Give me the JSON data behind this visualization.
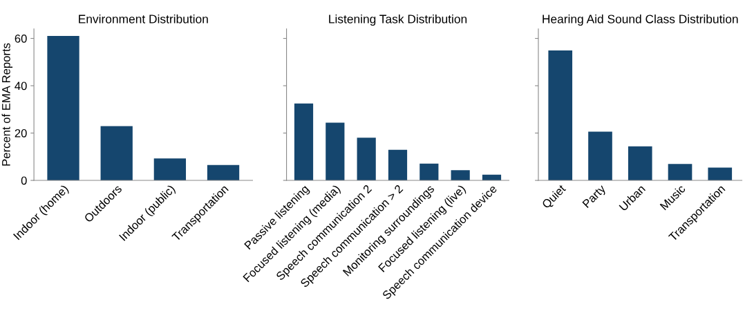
{
  "chart_data": [
    {
      "type": "bar",
      "title": "Environment Distribution",
      "ylabel": "Percent of EMA Reports",
      "categories": [
        "Indoor (home)",
        "Outdoors",
        "Indoor (public)",
        "Transportation"
      ],
      "values": [
        61.0,
        22.9,
        9.3,
        6.5
      ],
      "color": "#15466e",
      "ylim": [
        0,
        64
      ],
      "yticks": [
        0,
        20,
        40,
        60
      ],
      "grid": false
    },
    {
      "type": "bar",
      "title": "Listening Task Distribution",
      "categories": [
        "Passive listening",
        "Focused listening (media)",
        "Speech communication 2",
        "Speech communication > 2",
        "Monitoring surroundings",
        "Focused listening (live)",
        "Speech communication device"
      ],
      "values": [
        32.5,
        24.4,
        18.0,
        12.9,
        7.1,
        4.3,
        2.4
      ],
      "color": "#15466e",
      "ylim": [
        0,
        64
      ],
      "yticks": [
        0,
        20,
        40,
        60
      ],
      "tick_labels": "x",
      "grid": false
    },
    {
      "type": "bar",
      "title": "Hearing Aid Sound Class Distribution",
      "categories": [
        "Quiet",
        "Party",
        "Urban",
        "Music",
        "Transportation"
      ],
      "values": [
        54.9,
        20.6,
        14.4,
        6.9,
        5.4
      ],
      "color": "#15466e",
      "ylim": [
        0,
        64
      ],
      "yticks": [
        0,
        20,
        40,
        60
      ],
      "tick_labels": "x",
      "grid": false
    }
  ]
}
